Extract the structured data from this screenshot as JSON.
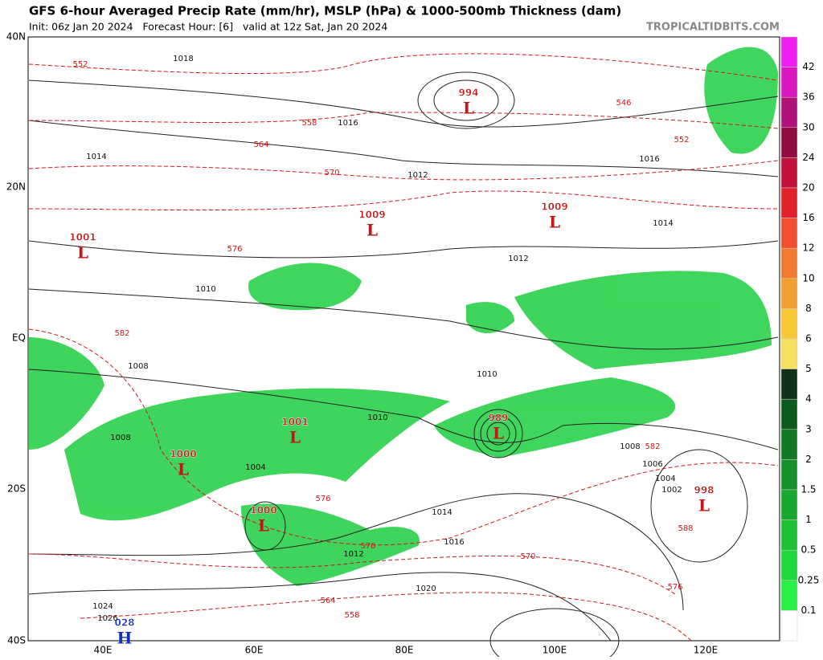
{
  "header": {
    "title": "GFS 6-hour Averaged Precip Rate (mm/hr), MSLP (hPa) & 1000-500mb Thickness (dam)",
    "subtitle": "Init: 06z Jan 20 2024   Forecast Hour: [6]   valid at 12z Sat, Jan 20 2024",
    "source": "TROPICALTIDBITS.COM"
  },
  "map": {
    "lat_labels": [
      "40N",
      "20N",
      "EQ",
      "20S",
      "40S"
    ],
    "lon_labels": [
      "40E",
      "60E",
      "80E",
      "100E",
      "120E"
    ],
    "centers": [
      {
        "type": "L",
        "value": "994"
      },
      {
        "type": "L",
        "value": "1009"
      },
      {
        "type": "L",
        "value": "1001"
      },
      {
        "type": "L",
        "value": "1009"
      },
      {
        "type": "L",
        "value": "1001"
      },
      {
        "type": "L",
        "value": "989"
      },
      {
        "type": "L",
        "value": "1000"
      },
      {
        "type": "L",
        "value": "1000"
      },
      {
        "type": "L",
        "value": "998"
      },
      {
        "type": "H",
        "value": "028"
      }
    ],
    "isobar_labels": [
      "1018",
      "1016",
      "1014",
      "1012",
      "1010",
      "1008",
      "1010",
      "1008",
      "1004",
      "1012",
      "1014",
      "1016",
      "1020",
      "1024",
      "1026",
      "1012",
      "1010",
      "1014",
      "1016",
      "1008",
      "1006",
      "1004",
      "1002"
    ],
    "thickness_labels": [
      "552",
      "558",
      "564",
      "570",
      "576",
      "582",
      "576",
      "570",
      "564",
      "558",
      "582",
      "588",
      "576",
      "570",
      "546",
      "552"
    ]
  },
  "colorbar": {
    "levels": [
      "42",
      "36",
      "30",
      "24",
      "20",
      "16",
      "12",
      "10",
      "8",
      "6",
      "5",
      "4",
      "3",
      "2",
      "1.5",
      "1",
      "0.5",
      "0.25",
      "0.1"
    ],
    "colors": [
      "#f01ef0",
      "#d818c0",
      "#b0127a",
      "#900c40",
      "#c0123a",
      "#e0222a",
      "#f05030",
      "#f07a30",
      "#f0a030",
      "#f8c838",
      "#f8e060",
      "#103018",
      "#0e5a1e",
      "#127a24",
      "#16902a",
      "#18a830",
      "#1ec036",
      "#20d83c",
      "#28f048",
      "#ffffff"
    ]
  }
}
